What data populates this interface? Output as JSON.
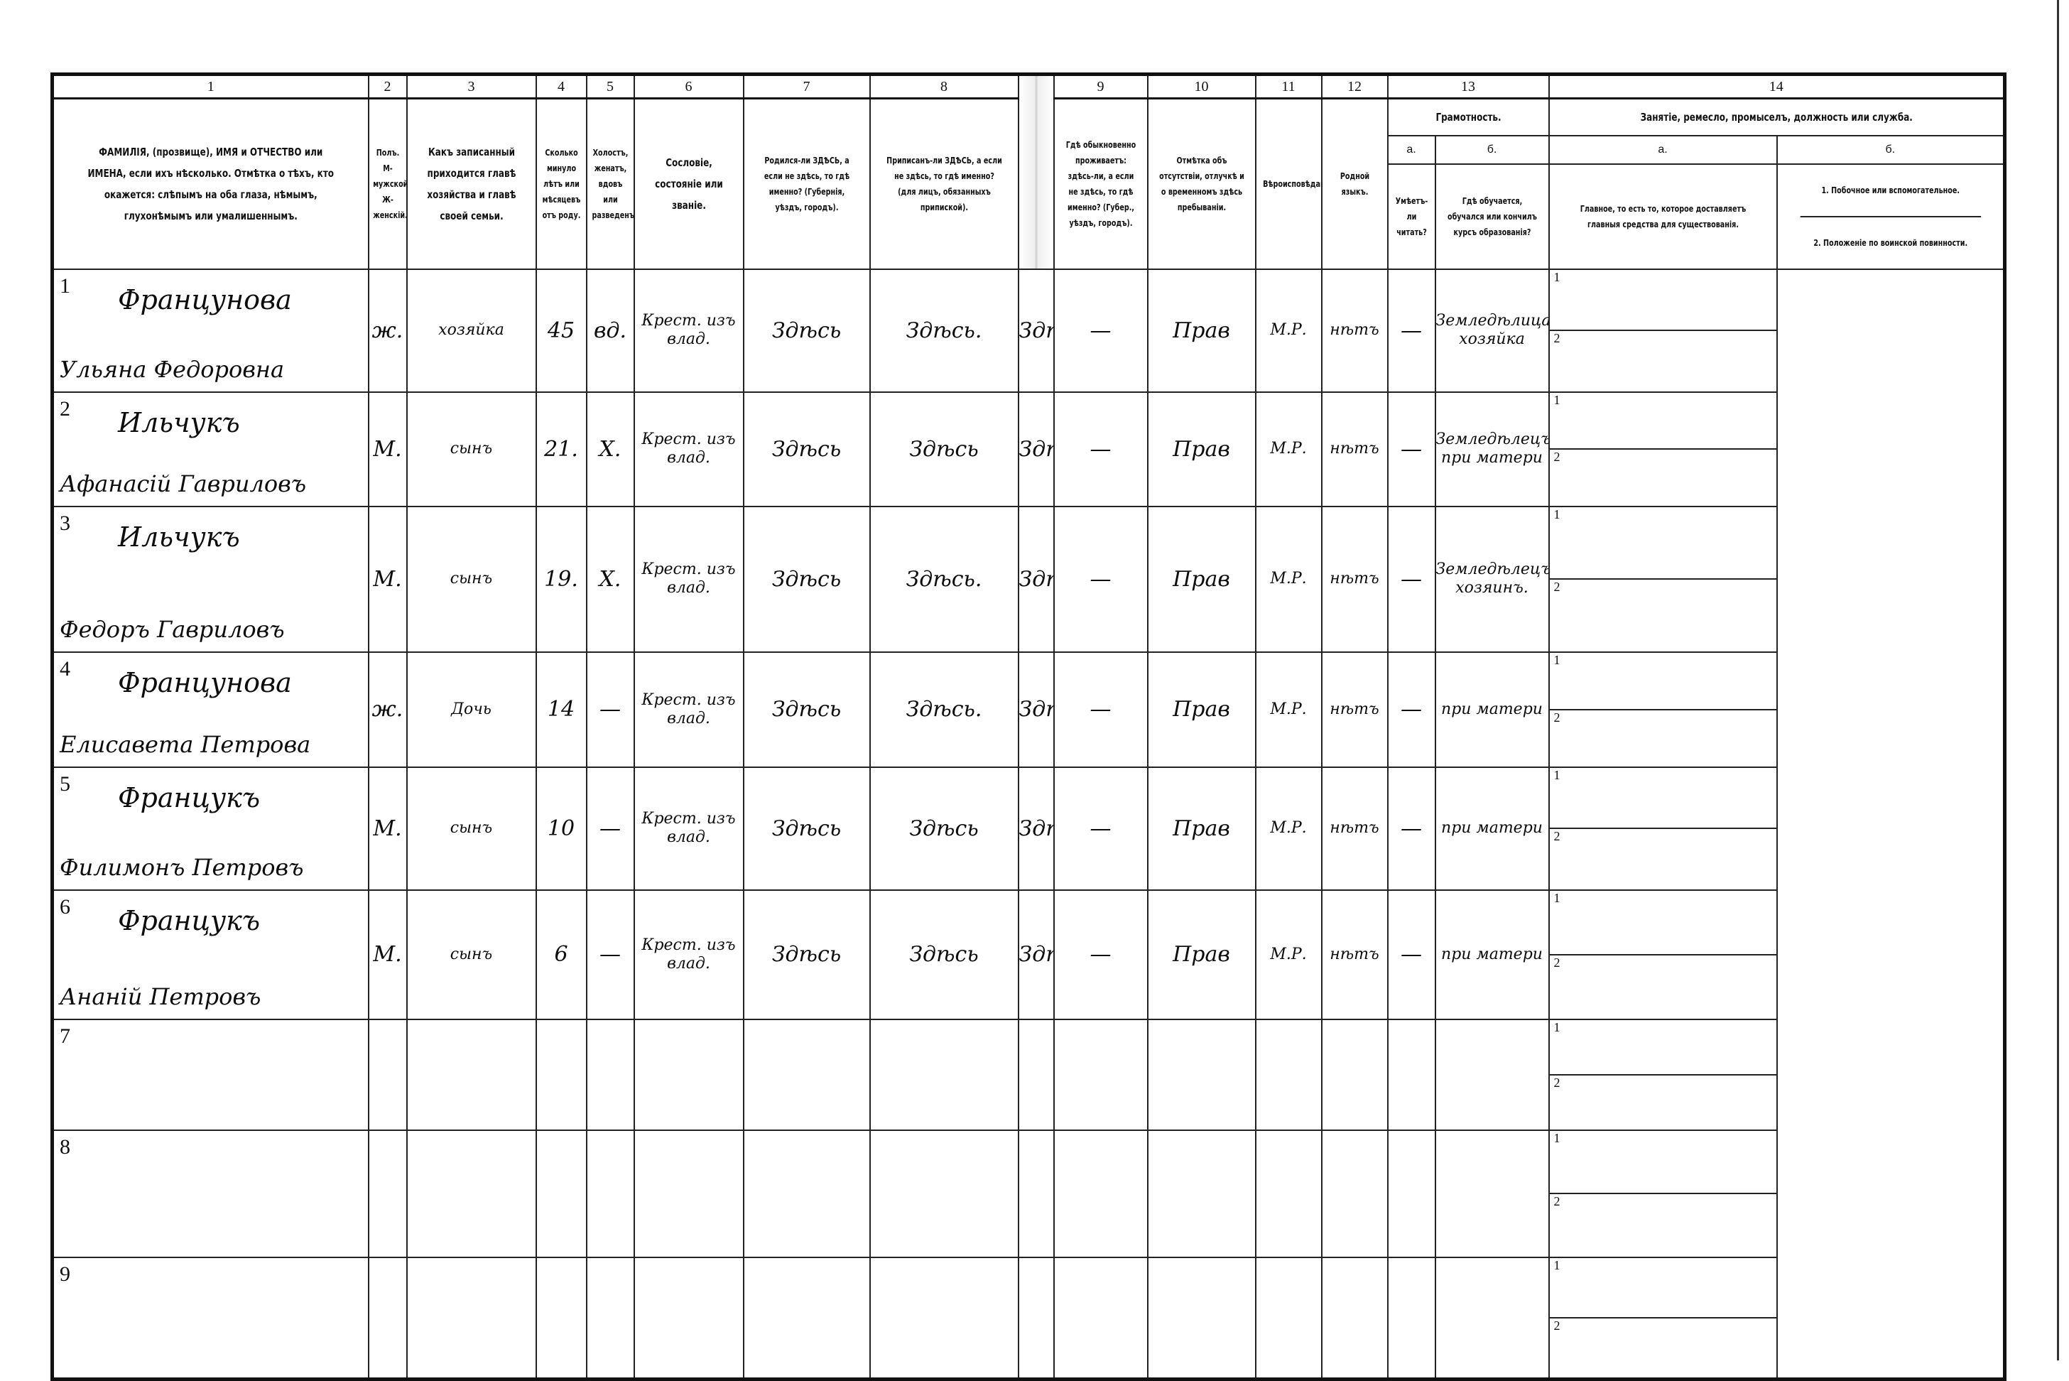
{
  "header": {
    "column_numbers": [
      "1",
      "2",
      "3",
      "4",
      "5",
      "6",
      "7",
      "8",
      "9",
      "10",
      "11",
      "12",
      "13",
      "14"
    ],
    "col1": "ФАМИЛІЯ, (прозвище), ИМЯ и ОТЧЕСТВО или ИМЕНА, если ихъ нѣсколько. Отмѣтка о тѣхъ, кто окажется: слѣпымъ на оба глаза, нѣмымъ, глухонѣмымъ или умалишеннымъ.",
    "col2": "Полъ. М-мужской. Ж-женскій.",
    "col3": "Какъ записанный приходится главѣ хозяйства и главѣ своей семьи.",
    "col4": "Сколько минуло лѣтъ или мѣсяцевъ отъ роду.",
    "col5": "Холостъ, женатъ, вдовъ или разведенъ.",
    "col6": "Сословіе, состояніе или званіе.",
    "col7": "Родился-ли ЗДѢСЬ, а если не здѣсь, то гдѣ именно? (Губернія, уѣздъ, городъ).",
    "col8": "Приписанъ-ли ЗДѢСЬ, а если не здѣсь, то гдѣ именно? (для лицъ, обязанныхъ припиской).",
    "col9": "Гдѣ обыкновенно проживаетъ: здѣсь-ли, а если не здѣсь, то гдѣ именно? (Губер., уѣздъ, городъ).",
    "col10": "Отмѣтка объ отсутствіи, отлучкѣ и о временномъ здѣсь пребываніи.",
    "col11": "Вѣроисповѣданіе.",
    "col12": "Родной языкъ.",
    "col13": "Грамотность.",
    "col13a_letter": "а.",
    "col13a": "Умѣетъ-ли читать?",
    "col13b_letter": "б.",
    "col13b": "Гдѣ обучается, обучался или кончилъ курсъ образованія?",
    "col14": "Занятіе, ремесло, промыселъ, должность или служба.",
    "col14a_letter": "а.",
    "col14a": "Главное, то есть то, которое доставляетъ главныя средства для существованія.",
    "col14b_letter": "б.",
    "col14b_1": "1. Побочное или вспомогательное.",
    "col14b_2": "2. Положеніе по воинской повинности."
  },
  "sub_labels": [
    "1",
    "2"
  ],
  "rows": [
    {
      "n": "1",
      "surname": "Францунова",
      "given": "Ульяна Федоровна",
      "sex": "ж.",
      "relation": "хозяйка",
      "age": "45",
      "marital": "вд.",
      "estate": "Крест. изъ влад.",
      "born": "Здѣсь",
      "registered": "Здѣсь.",
      "residence": "Здѣсь",
      "absence": "—",
      "religion": "Прав",
      "language": "М.Р.",
      "literate": "нѣтъ",
      "education": "—",
      "occupation": "Земледѣлица хозяйка"
    },
    {
      "n": "2",
      "surname": "Ильчукъ",
      "given": "Афанасій Гавриловъ",
      "sex": "М.",
      "relation": "сынъ",
      "age": "21.",
      "marital": "Х.",
      "estate": "Крест. изъ влад.",
      "born": "Здѣсь",
      "registered": "Здѣсь",
      "residence": "Здѣсь.",
      "absence": "—",
      "religion": "Прав",
      "language": "М.Р.",
      "literate": "нѣтъ",
      "education": "—",
      "occupation": "Земледѣлецъ при матери"
    },
    {
      "n": "3",
      "surname": "Ильчукъ",
      "given": "Федоръ Гавриловъ",
      "sex": "М.",
      "relation": "сынъ",
      "age": "19.",
      "marital": "Х.",
      "estate": "Крест. изъ влад.",
      "born": "Здѣсь",
      "registered": "Здѣсь.",
      "residence": "Здѣсь.",
      "absence": "—",
      "religion": "Прав",
      "language": "М.Р.",
      "literate": "нѣтъ",
      "education": "—",
      "occupation": "Земледѣлецъ хозяинъ."
    },
    {
      "n": "4",
      "surname": "Францунова",
      "given": "Елисавета Петрова",
      "sex": "ж.",
      "relation": "Дочь",
      "age": "14",
      "marital": "—",
      "estate": "Крест. изъ влад.",
      "born": "Здѣсь",
      "registered": "Здѣсь.",
      "residence": "Здѣсь.",
      "absence": "—",
      "religion": "Прав",
      "language": "М.Р.",
      "literate": "нѣтъ",
      "education": "—",
      "occupation": "при матери"
    },
    {
      "n": "5",
      "surname": "Францукъ",
      "given": "Филимонъ Петровъ",
      "sex": "М.",
      "relation": "сынъ",
      "age": "10",
      "marital": "—",
      "estate": "Крест. изъ влад.",
      "born": "Здѣсь",
      "registered": "Здѣсь",
      "residence": "Здѣсь",
      "absence": "—",
      "religion": "Прав",
      "language": "М.Р.",
      "literate": "нѣтъ",
      "education": "—",
      "occupation": "при матери"
    },
    {
      "n": "6",
      "surname": "Францукъ",
      "given": "Ананій Петровъ",
      "sex": "М.",
      "relation": "сынъ",
      "age": "6",
      "marital": "—",
      "estate": "Крест. изъ влад.",
      "born": "Здѣсь",
      "registered": "Здѣсь",
      "residence": "Здѣсь",
      "absence": "—",
      "religion": "Прав",
      "language": "М.Р.",
      "literate": "нѣтъ",
      "education": "—",
      "occupation": "при матери"
    },
    {
      "n": "7"
    },
    {
      "n": "8"
    },
    {
      "n": "9"
    }
  ]
}
